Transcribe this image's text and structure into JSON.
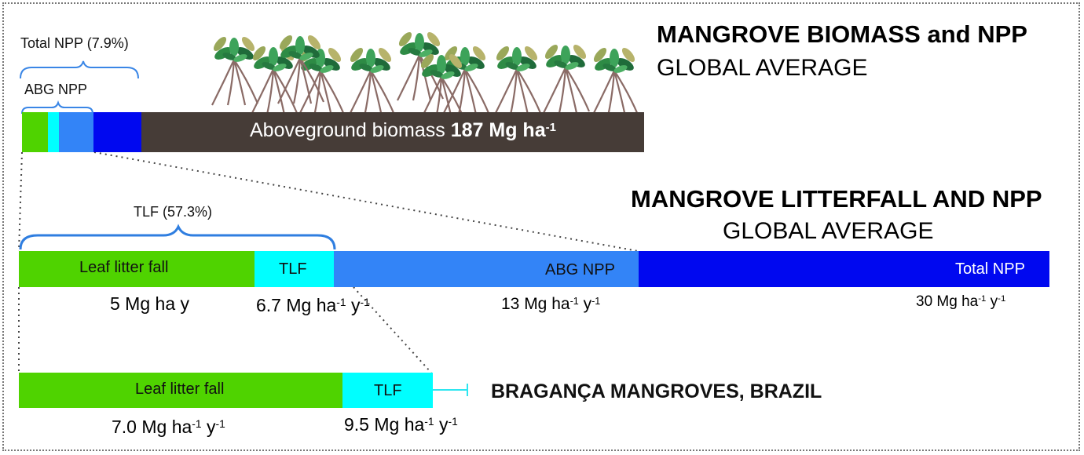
{
  "colors": {
    "leaf": "#4fd300",
    "tlf": "#00ffff",
    "abg_npp": "#3384f7",
    "total_npp": "#0008f0",
    "biomass": "#463c37",
    "bracket": "#3a86e6",
    "error_bar": "#2ee6f0",
    "connector": "#444444"
  },
  "global_biomass": {
    "title_line1": "MANGROVE BIOMASS and NPP",
    "title_line2": "GLOBAL AVERAGE",
    "total_npp_bracket": "Total NPP  (7.9%)",
    "abg_npp_bracket": "ABG  NPP",
    "biomass_label_text": "Aboveground biomass ",
    "biomass_value": "187 Mg ha",
    "biomass_exp": "-1",
    "illustration": "mangrove-trees-illustration"
  },
  "global_litterfall": {
    "title_line1": "MANGROVE LITTERFALL AND NPP",
    "title_line2": "GLOBAL AVERAGE",
    "tlf_bracket": "TLF (57.3%)",
    "leaf_label": "Leaf litter fall",
    "tlf_label": "TLF",
    "abg_label": "ABG  NPP",
    "total_label": "Total  NPP",
    "leaf_value": "5 Mg ha y",
    "tlf_value": "6.7 Mg ha",
    "tlf_exp1": "-1",
    "tlf_unit2": " y",
    "tlf_exp2": "-1",
    "abg_value": "13  Mg ha",
    "abg_exp1": "-1",
    "abg_unit2": " y",
    "abg_exp2": "-1",
    "total_value": "30  Mg ha",
    "total_exp1": "-1",
    "total_unit2": " y",
    "total_exp2": "-1"
  },
  "braganca": {
    "title": "BRAGANÇA MANGROVES, BRAZIL",
    "leaf_label": "Leaf litter fall",
    "tlf_label": "TLF",
    "leaf_value": "7.0  Mg ha",
    "leaf_exp1": "-1",
    "leaf_unit2": " y",
    "leaf_exp2": "-1",
    "tlf_value": "9.5  Mg ha",
    "tlf_exp1": "-1",
    "tlf_unit2": " y",
    "tlf_exp2": "-1"
  }
}
